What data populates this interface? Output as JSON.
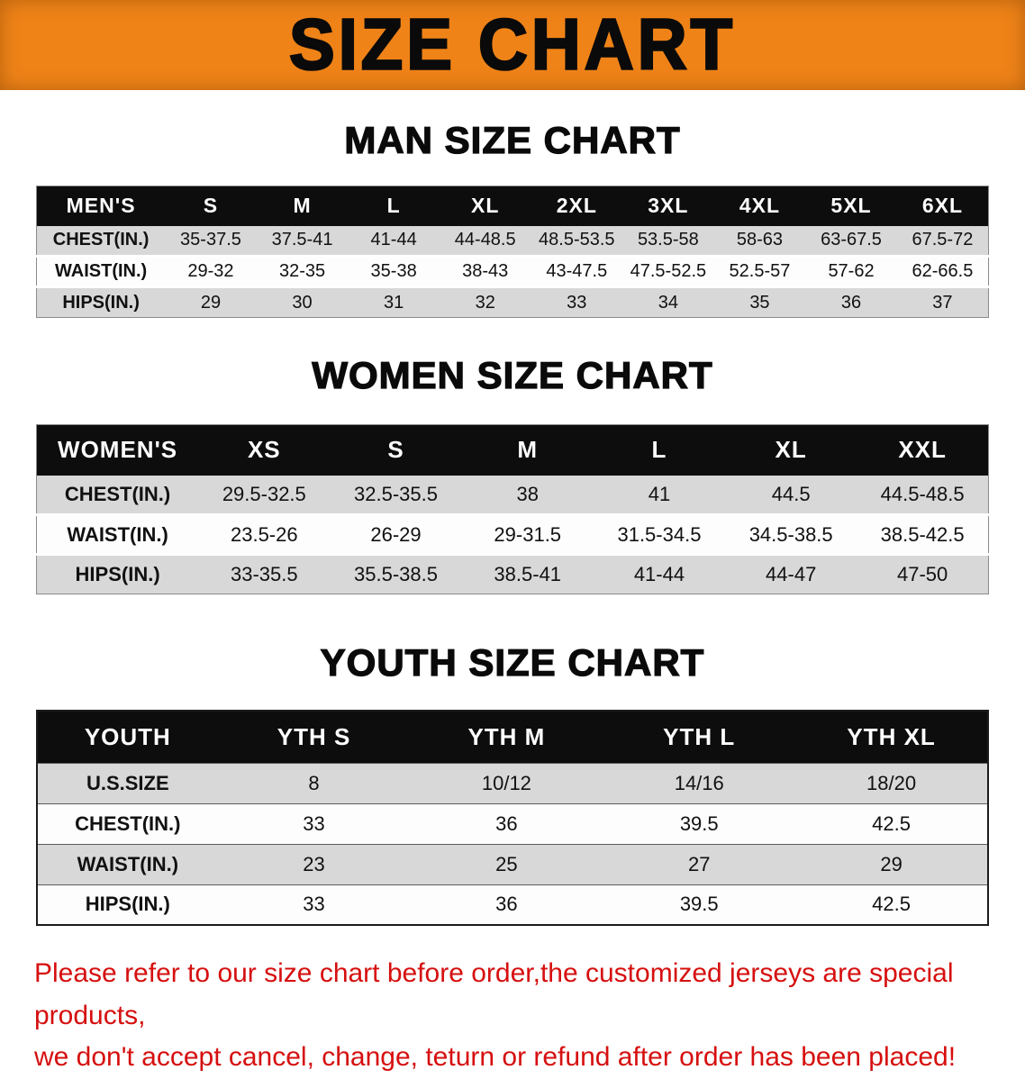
{
  "banner": {
    "title": "SIZE CHART",
    "background_color": "#ef8318",
    "text_color": "#0a0a0a"
  },
  "sections": [
    {
      "id": "men",
      "title": "MAN SIZE CHART",
      "table": {
        "header": [
          "MEN'S",
          "S",
          "M",
          "L",
          "XL",
          "2XL",
          "3XL",
          "4XL",
          "5XL",
          "6XL"
        ],
        "rows": [
          {
            "label": "CHEST(IN.)",
            "values": [
              "35-37.5",
              "37.5-41",
              "41-44",
              "44-48.5",
              "48.5-53.5",
              "53.5-58",
              "58-63",
              "63-67.5",
              "67.5-72"
            ]
          },
          {
            "label": "WAIST(IN.)",
            "values": [
              "29-32",
              "32-35",
              "35-38",
              "38-43",
              "43-47.5",
              "47.5-52.5",
              "52.5-57",
              "57-62",
              "62-66.5"
            ]
          },
          {
            "label": "HIPS(IN.)",
            "values": [
              "29",
              "30",
              "31",
              "32",
              "33",
              "34",
              "35",
              "36",
              "37"
            ]
          }
        ]
      }
    },
    {
      "id": "women",
      "title": "WOMEN SIZE CHART",
      "table": {
        "header": [
          "WOMEN'S",
          "XS",
          "S",
          "M",
          "L",
          "XL",
          "XXL"
        ],
        "rows": [
          {
            "label": "CHEST(IN.)",
            "values": [
              "29.5-32.5",
              "32.5-35.5",
              "38",
              "41",
              "44.5",
              "44.5-48.5"
            ]
          },
          {
            "label": "WAIST(IN.)",
            "values": [
              "23.5-26",
              "26-29",
              "29-31.5",
              "31.5-34.5",
              "34.5-38.5",
              "38.5-42.5"
            ]
          },
          {
            "label": "HIPS(IN.)",
            "values": [
              "33-35.5",
              "35.5-38.5",
              "38.5-41",
              "41-44",
              "44-47",
              "47-50"
            ]
          }
        ]
      }
    },
    {
      "id": "youth",
      "title": "YOUTH SIZE CHART",
      "table": {
        "header": [
          "YOUTH",
          "YTH S",
          "YTH M",
          "YTH L",
          "YTH XL"
        ],
        "rows": [
          {
            "label": "U.S.SIZE",
            "values": [
              "8",
              "10/12",
              "14/16",
              "18/20"
            ]
          },
          {
            "label": "CHEST(IN.)",
            "values": [
              "33",
              "36",
              "39.5",
              "42.5"
            ]
          },
          {
            "label": "WAIST(IN.)",
            "values": [
              "23",
              "25",
              "27",
              "29"
            ]
          },
          {
            "label": "HIPS(IN.)",
            "values": [
              "33",
              "36",
              "39.5",
              "42.5"
            ]
          }
        ]
      }
    }
  ],
  "footer": {
    "line1": "Please refer to our size chart before order,the customized jerseys are special products,",
    "line2": "we don't accept cancel, change, teturn or refund after order has been placed!",
    "text_color": "#d60f0f"
  }
}
